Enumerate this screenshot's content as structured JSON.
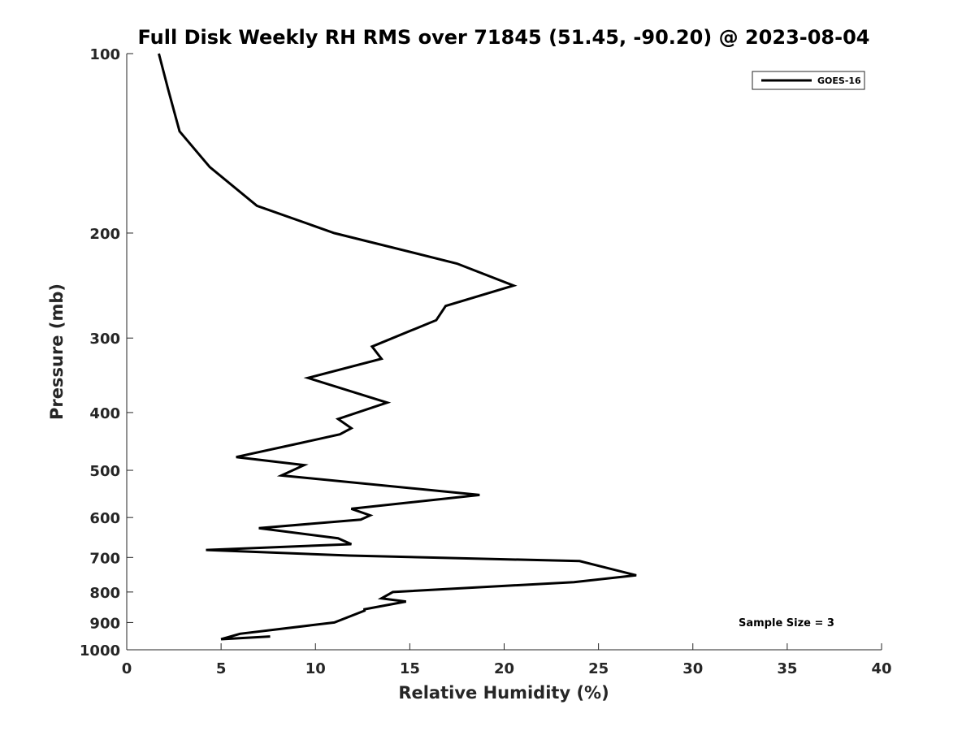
{
  "chart_data": {
    "type": "line",
    "title": "Full Disk Weekly RH RMS over 71845 (51.45, -90.20) @ 2023-08-04",
    "xlabel": "Relative Humidity (%)",
    "ylabel": "Pressure (mb)",
    "xlim": [
      0,
      40
    ],
    "ylim": [
      100,
      1000
    ],
    "y_scale": "log",
    "y_direction": "reversed",
    "x_ticks": [
      0,
      5,
      10,
      15,
      20,
      25,
      30,
      35,
      40
    ],
    "y_ticks": [
      100,
      200,
      300,
      400,
      500,
      600,
      700,
      800,
      900,
      1000
    ],
    "grid": false,
    "legend_position": "top-right",
    "line_color": "#000000",
    "series": [
      {
        "name": "GOES-16",
        "x": [
          1.7,
          2.2,
          2.8,
          4.4,
          6.9,
          11.0,
          17.5,
          20.5,
          16.9,
          16.4,
          13.0,
          13.5,
          9.6,
          13.8,
          11.2,
          11.9,
          11.3,
          9.2,
          5.8,
          9.4,
          8.2,
          18.7,
          11.9,
          12.9,
          12.4,
          7.0,
          11.2,
          11.9,
          4.2,
          11.8,
          24.0,
          27.0,
          23.7,
          14.1,
          13.5,
          14.8,
          12.6,
          12.6,
          11.0,
          6.0,
          5.0,
          7.6
        ],
        "y": [
          100,
          115,
          135,
          155,
          180,
          200,
          225,
          245,
          265,
          280,
          310,
          325,
          350,
          385,
          410,
          425,
          435,
          450,
          475,
          490,
          510,
          550,
          580,
          595,
          605,
          625,
          650,
          665,
          680,
          695,
          710,
          750,
          770,
          800,
          820,
          830,
          855,
          860,
          900,
          940,
          960,
          950
        ]
      }
    ],
    "annotations": [
      "Sample Size = 3"
    ]
  }
}
